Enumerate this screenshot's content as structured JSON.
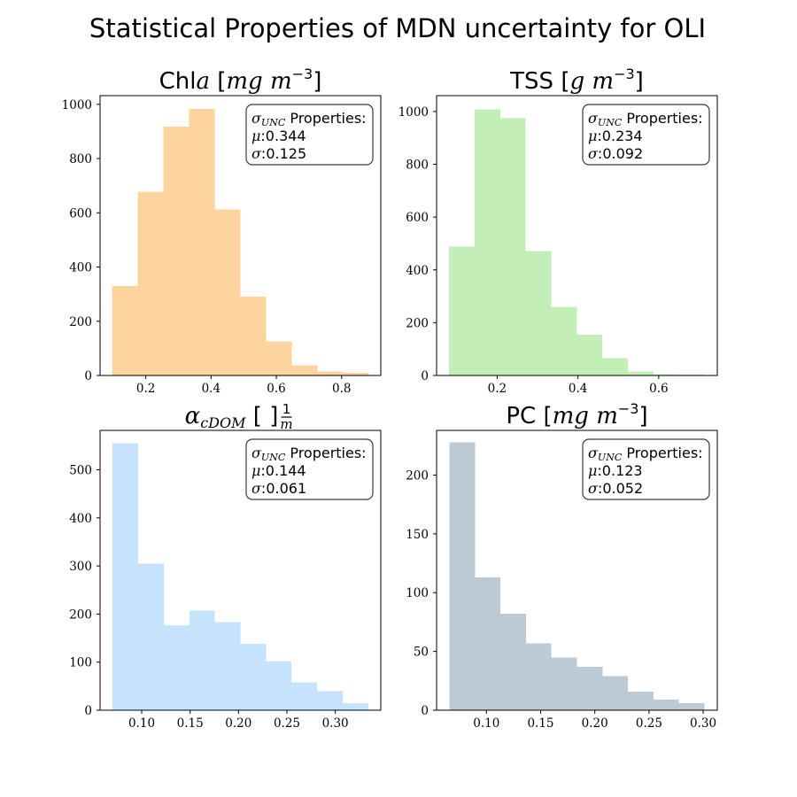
{
  "figure_title": "Statistical Properties of MDN uncertainty for OLI",
  "colors": {
    "chla": "#fdd49e",
    "tss": "#c3eeb8",
    "acdom": "#c6e2fd",
    "pc": "#bccad6"
  },
  "chart_data": [
    {
      "type": "bar",
      "panel": "top-left",
      "title": "Chla [mg m^-3]",
      "title_text": "Chl",
      "title_var": "a",
      "title_unit": "[mg m",
      "title_exp": "−3",
      "title_close": "]",
      "color_key": "chla",
      "bin_edges": [
        0.096,
        0.1747,
        0.2534,
        0.3321,
        0.4108,
        0.4895,
        0.5682,
        0.6469,
        0.7256,
        0.8043,
        0.883
      ],
      "values": [
        330,
        678,
        917,
        983,
        613,
        290,
        125,
        37,
        15,
        10
      ],
      "xlim": [
        0.06,
        0.92
      ],
      "ylim": [
        0,
        1032
      ],
      "xticks": [
        0.2,
        0.4,
        0.6,
        0.8
      ],
      "xtick_labels": [
        "0.2",
        "0.4",
        "0.6",
        "0.8"
      ],
      "yticks": [
        0,
        200,
        400,
        600,
        800,
        1000
      ],
      "ytick_labels": [
        "0",
        "200",
        "400",
        "600",
        "800",
        "1000"
      ],
      "stats": {
        "label_sym": "σ",
        "label_sub": "UNC",
        "label_text": " Properties:",
        "mu_sym": "μ",
        "mu_val": ":0.344",
        "sigma_sym": "σ",
        "sigma_val": ":0.125"
      },
      "legend_position": "top-right"
    },
    {
      "type": "bar",
      "panel": "top-right",
      "title": "TSS [g m^-3]",
      "title_text": "TSS",
      "title_var": "",
      "title_unit": "[g m",
      "title_exp": "−3",
      "title_close": "]",
      "color_key": "tss",
      "bin_edges": [
        0.081,
        0.1442,
        0.2074,
        0.2706,
        0.3338,
        0.397,
        0.4602,
        0.5234,
        0.5866,
        0.6498,
        0.713
      ],
      "values": [
        488,
        1008,
        975,
        472,
        260,
        155,
        65,
        15,
        5,
        3
      ],
      "xlim": [
        0.05,
        0.745
      ],
      "ylim": [
        0,
        1060
      ],
      "xticks": [
        0.2,
        0.4,
        0.6
      ],
      "xtick_labels": [
        "0.2",
        "0.4",
        "0.6"
      ],
      "yticks": [
        0,
        200,
        400,
        600,
        800,
        1000
      ],
      "ytick_labels": [
        "0",
        "200",
        "400",
        "600",
        "800",
        "1000"
      ],
      "stats": {
        "label_sym": "σ",
        "label_sub": "UNC",
        "label_text": " Properties:",
        "mu_sym": "μ",
        "mu_val": ":0.234",
        "sigma_sym": "σ",
        "sigma_val": ":0.092"
      },
      "legend_position": "top-right"
    },
    {
      "type": "bar",
      "panel": "bottom-left",
      "title": "α_cDOM [1/m]",
      "title_text": "",
      "title_var": "α",
      "title_sub": "cDOM",
      "title_frac_num": "1",
      "title_frac_den": "m",
      "color_key": "acdom",
      "bin_edges": [
        0.07,
        0.0964,
        0.1228,
        0.1492,
        0.1756,
        0.202,
        0.2284,
        0.2548,
        0.2812,
        0.3076,
        0.334
      ],
      "values": [
        555,
        305,
        177,
        207,
        183,
        138,
        101,
        58,
        40,
        15
      ],
      "xlim": [
        0.057,
        0.347
      ],
      "ylim": [
        0,
        582
      ],
      "xticks": [
        0.1,
        0.15,
        0.2,
        0.25,
        0.3
      ],
      "xtick_labels": [
        "0.10",
        "0.15",
        "0.20",
        "0.25",
        "0.30"
      ],
      "yticks": [
        0,
        100,
        200,
        300,
        400,
        500
      ],
      "ytick_labels": [
        "0",
        "100",
        "200",
        "300",
        "400",
        "500"
      ],
      "stats": {
        "label_sym": "σ",
        "label_sub": "UNC",
        "label_text": " Properties:",
        "mu_sym": "μ",
        "mu_val": ":0.144",
        "sigma_sym": "σ",
        "sigma_val": ":0.061"
      },
      "legend_position": "top-right"
    },
    {
      "type": "bar",
      "panel": "bottom-right",
      "title": "PC [mg m^-3]",
      "title_text": "PC",
      "title_var": "",
      "title_unit": "[mg m",
      "title_exp": "−3",
      "title_close": "]",
      "color_key": "pc",
      "bin_edges": [
        0.066,
        0.0895,
        0.113,
        0.1365,
        0.16,
        0.1835,
        0.207,
        0.2305,
        0.254,
        0.2775,
        0.301
      ],
      "values": [
        228,
        113,
        82,
        57,
        45,
        37,
        29,
        16,
        9,
        6
      ],
      "xlim": [
        0.054,
        0.313
      ],
      "ylim": [
        0,
        238
      ],
      "xticks": [
        0.1,
        0.15,
        0.2,
        0.25,
        0.3
      ],
      "xtick_labels": [
        "0.10",
        "0.15",
        "0.20",
        "0.25",
        "0.30"
      ],
      "yticks": [
        0,
        50,
        100,
        150,
        200
      ],
      "ytick_labels": [
        "0",
        "50",
        "100",
        "150",
        "200"
      ],
      "stats": {
        "label_sym": "σ",
        "label_sub": "UNC",
        "label_text": " Properties:",
        "mu_sym": "μ",
        "mu_val": ":0.123",
        "sigma_sym": "σ",
        "sigma_val": ":0.052"
      },
      "legend_position": "top-right"
    }
  ]
}
